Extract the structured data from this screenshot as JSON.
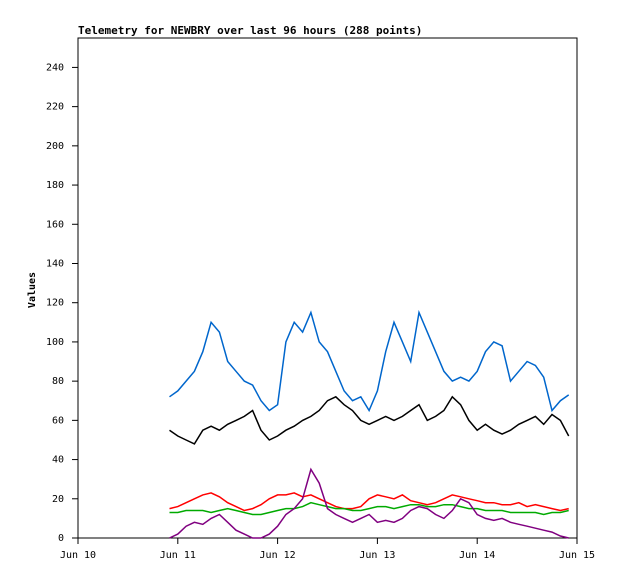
{
  "chart_data": {
    "type": "line",
    "title": "Telemetry for NEWBRY over last 96 hours (288 points)",
    "y_label": "Values",
    "x": [
      22,
      24,
      26,
      28,
      30,
      32,
      34,
      36,
      38,
      40,
      42,
      44,
      46,
      48,
      50,
      52,
      54,
      56,
      58,
      60,
      62,
      64,
      66,
      68,
      70,
      72,
      74,
      76,
      78,
      80,
      82,
      84,
      86,
      88,
      90,
      92,
      94,
      96,
      98,
      100,
      102,
      104,
      106,
      108,
      110,
      112,
      114,
      116,
      118
    ],
    "xlim": [
      0,
      120
    ],
    "xticks": [
      {
        "value": 0,
        "label": "Jun 10"
      },
      {
        "value": 24,
        "label": "Jun 11"
      },
      {
        "value": 48,
        "label": "Jun 12"
      },
      {
        "value": 72,
        "label": "Jun 13"
      },
      {
        "value": 96,
        "label": "Jun 14"
      },
      {
        "value": 120,
        "label": "Jun 15"
      }
    ],
    "ylim": [
      0,
      255
    ],
    "yticks": [
      0,
      20,
      40,
      60,
      80,
      100,
      120,
      140,
      160,
      180,
      200,
      220,
      240
    ],
    "series": [
      {
        "color": "#0066cc",
        "values": [
          72,
          75,
          80,
          85,
          95,
          110,
          105,
          90,
          85,
          80,
          78,
          70,
          65,
          68,
          100,
          110,
          105,
          115,
          100,
          95,
          85,
          75,
          70,
          72,
          65,
          75,
          95,
          110,
          100,
          90,
          115,
          105,
          95,
          85,
          80,
          82,
          80,
          85,
          95,
          100,
          98,
          80,
          85,
          90,
          88,
          82,
          65,
          70,
          73
        ]
      },
      {
        "color": "#000000",
        "values": [
          55,
          52,
          50,
          48,
          55,
          57,
          55,
          58,
          60,
          62,
          65,
          55,
          50,
          52,
          55,
          57,
          60,
          62,
          65,
          70,
          72,
          68,
          65,
          60,
          58,
          60,
          62,
          60,
          62,
          65,
          68,
          60,
          62,
          65,
          72,
          68,
          60,
          55,
          58,
          55,
          53,
          55,
          58,
          60,
          62,
          58,
          63,
          60,
          52
        ]
      },
      {
        "color": "#ff0000",
        "values": [
          15,
          16,
          18,
          20,
          22,
          23,
          21,
          18,
          16,
          14,
          15,
          17,
          20,
          22,
          22,
          23,
          21,
          22,
          20,
          18,
          16,
          15,
          15,
          16,
          20,
          22,
          21,
          20,
          22,
          19,
          18,
          17,
          18,
          20,
          22,
          21,
          20,
          19,
          18,
          18,
          17,
          17,
          18,
          16,
          17,
          16,
          15,
          14,
          15
        ]
      },
      {
        "color": "#00aa00",
        "values": [
          13,
          13,
          14,
          14,
          14,
          13,
          14,
          15,
          14,
          13,
          12,
          12,
          13,
          14,
          15,
          15,
          16,
          18,
          17,
          16,
          15,
          15,
          14,
          14,
          15,
          16,
          16,
          15,
          16,
          17,
          17,
          16,
          16,
          17,
          17,
          16,
          15,
          15,
          14,
          14,
          14,
          13,
          13,
          13,
          13,
          12,
          13,
          13,
          14
        ]
      },
      {
        "color": "#800080",
        "values": [
          0,
          2,
          6,
          8,
          7,
          10,
          12,
          8,
          4,
          2,
          0,
          0,
          2,
          6,
          12,
          15,
          20,
          35,
          28,
          15,
          12,
          10,
          8,
          10,
          12,
          8,
          9,
          8,
          10,
          14,
          16,
          15,
          12,
          10,
          14,
          20,
          18,
          12,
          10,
          9,
          10,
          8,
          7,
          6,
          5,
          4,
          3,
          1,
          0
        ]
      }
    ]
  }
}
